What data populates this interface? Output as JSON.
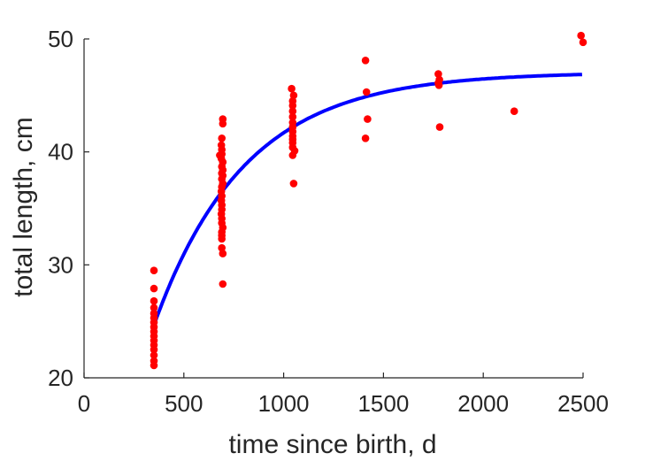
{
  "chart_data": {
    "type": "scatter",
    "title": "",
    "xlabel": "time since birth, d",
    "ylabel": "total length, cm",
    "xlim": [
      0,
      2500
    ],
    "ylim": [
      20,
      50
    ],
    "xticks": [
      0,
      500,
      1000,
      1500,
      2000,
      2500
    ],
    "yticks": [
      20,
      30,
      40,
      50
    ],
    "grid": false,
    "box": false,
    "series": [
      {
        "kind": "points",
        "color": "#ff0000",
        "points": [
          [
            350,
            29.5
          ],
          [
            350,
            27.9
          ],
          [
            350,
            26.8
          ],
          [
            350,
            26.2
          ],
          [
            350,
            25.7
          ],
          [
            350,
            25.3
          ],
          [
            350,
            24.9
          ],
          [
            350,
            24.5
          ],
          [
            350,
            24.1
          ],
          [
            350,
            23.7
          ],
          [
            350,
            23.3
          ],
          [
            350,
            22.9
          ],
          [
            350,
            22.5
          ],
          [
            350,
            22.0
          ],
          [
            350,
            21.5
          ],
          [
            350,
            21.1
          ],
          [
            695,
            42.9
          ],
          [
            695,
            42.5
          ],
          [
            690,
            41.2
          ],
          [
            688,
            40.6
          ],
          [
            690,
            40.2
          ],
          [
            690,
            39.8
          ],
          [
            680,
            39.7
          ],
          [
            688,
            39.4
          ],
          [
            695,
            39.1
          ],
          [
            690,
            38.7
          ],
          [
            695,
            38.4
          ],
          [
            690,
            38.1
          ],
          [
            695,
            37.9
          ],
          [
            690,
            37.6
          ],
          [
            695,
            37.2
          ],
          [
            690,
            36.9
          ],
          [
            688,
            36.5
          ],
          [
            690,
            36.1
          ],
          [
            688,
            35.7
          ],
          [
            690,
            35.3
          ],
          [
            690,
            34.9
          ],
          [
            688,
            34.5
          ],
          [
            690,
            34.1
          ],
          [
            690,
            33.7
          ],
          [
            695,
            33.3
          ],
          [
            690,
            32.9
          ],
          [
            690,
            32.6
          ],
          [
            690,
            32.3
          ],
          [
            690,
            31.5
          ],
          [
            695,
            31.0
          ],
          [
            695,
            28.3
          ],
          [
            1040,
            45.6
          ],
          [
            1050,
            45.0
          ],
          [
            1045,
            44.5
          ],
          [
            1045,
            44.1
          ],
          [
            1045,
            43.6
          ],
          [
            1045,
            43.1
          ],
          [
            1045,
            42.6
          ],
          [
            1045,
            42.2
          ],
          [
            1045,
            41.8
          ],
          [
            1045,
            41.4
          ],
          [
            1045,
            41.1
          ],
          [
            1045,
            40.8
          ],
          [
            1045,
            40.4
          ],
          [
            1055,
            40.1
          ],
          [
            1045,
            39.7
          ],
          [
            1050,
            37.2
          ],
          [
            1410,
            48.1
          ],
          [
            1415,
            45.3
          ],
          [
            1420,
            42.9
          ],
          [
            1410,
            41.2
          ],
          [
            1775,
            46.9
          ],
          [
            1780,
            46.4
          ],
          [
            1775,
            46.1
          ],
          [
            1778,
            45.9
          ],
          [
            1782,
            42.2
          ],
          [
            2155,
            43.6
          ],
          [
            2490,
            50.3
          ],
          [
            2500,
            49.7
          ]
        ]
      },
      {
        "kind": "curve",
        "color": "#0000ff",
        "model": "von Bertalanffy growth",
        "params": {
          "Linf": 47.05,
          "L0": 24.9,
          "t0": 355,
          "k": 0.0022
        },
        "x_range": [
          355,
          2500
        ]
      }
    ]
  }
}
